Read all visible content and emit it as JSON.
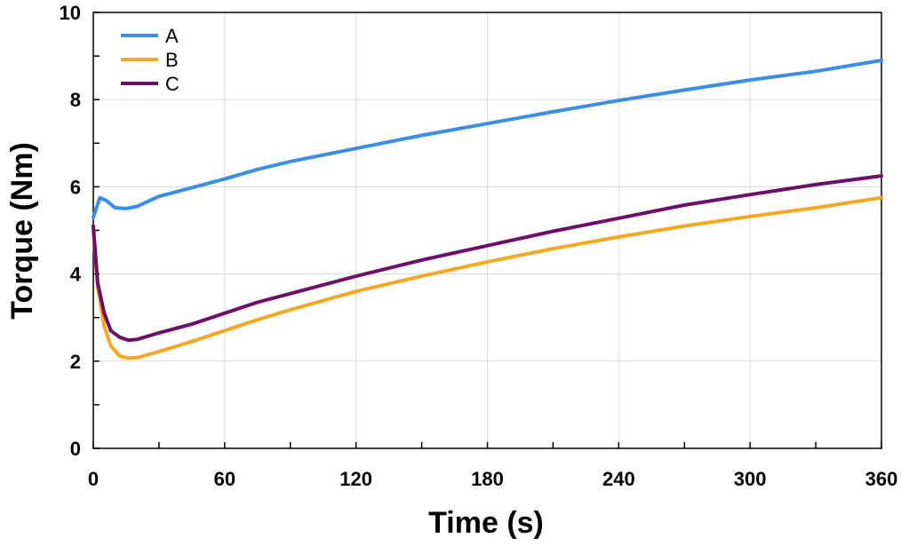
{
  "chart_data": {
    "type": "line",
    "title": "",
    "xlabel": "Time (s)",
    "ylabel": "Torque (Nm)",
    "xlim": [
      0,
      360
    ],
    "ylim": [
      0,
      10
    ],
    "xticks": [
      0,
      60,
      120,
      180,
      240,
      300,
      360
    ],
    "yticks": [
      0,
      2,
      4,
      6,
      8,
      10
    ],
    "x_tick_labels": [
      "0",
      "60",
      "120",
      "180",
      "240",
      "300",
      "360"
    ],
    "y_tick_labels": [
      "0",
      "2",
      "4",
      "6",
      "8",
      "10"
    ],
    "grid": true,
    "legend_position": "top-left",
    "series": [
      {
        "name": "A",
        "color": "#3a8ee6",
        "x": [
          0,
          3,
          6,
          10,
          15,
          20,
          30,
          45,
          60,
          75,
          90,
          120,
          150,
          180,
          210,
          240,
          270,
          300,
          330,
          360
        ],
        "y": [
          5.3,
          5.75,
          5.68,
          5.52,
          5.5,
          5.55,
          5.78,
          5.98,
          6.18,
          6.4,
          6.58,
          6.88,
          7.18,
          7.45,
          7.72,
          7.98,
          8.22,
          8.45,
          8.65,
          8.9
        ]
      },
      {
        "name": "B",
        "color": "#f5a623",
        "x": [
          0,
          2,
          5,
          8,
          12,
          16,
          20,
          30,
          45,
          60,
          75,
          90,
          120,
          150,
          180,
          210,
          240,
          270,
          300,
          330,
          360
        ],
        "y": [
          5.0,
          3.7,
          2.8,
          2.35,
          2.12,
          2.07,
          2.08,
          2.22,
          2.45,
          2.7,
          2.95,
          3.18,
          3.6,
          3.95,
          4.28,
          4.58,
          4.85,
          5.1,
          5.32,
          5.52,
          5.75
        ]
      },
      {
        "name": "C",
        "color": "#6b0f6b",
        "x": [
          0,
          2,
          5,
          8,
          12,
          16,
          20,
          30,
          45,
          60,
          75,
          90,
          120,
          150,
          180,
          210,
          240,
          270,
          300,
          330,
          360
        ],
        "y": [
          5.1,
          3.8,
          3.1,
          2.7,
          2.55,
          2.48,
          2.5,
          2.65,
          2.85,
          3.1,
          3.35,
          3.55,
          3.95,
          4.32,
          4.65,
          4.98,
          5.28,
          5.58,
          5.82,
          6.05,
          6.25
        ]
      }
    ]
  }
}
